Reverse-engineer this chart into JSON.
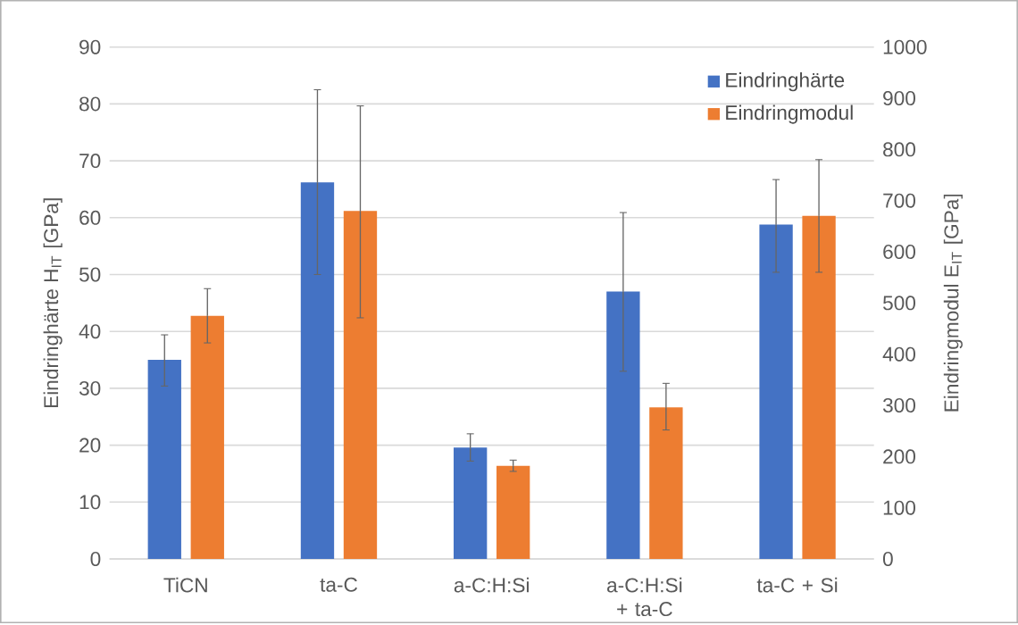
{
  "chart_data": {
    "type": "bar",
    "categories": [
      "TiCN",
      "ta-C",
      "a-C:H:Si",
      "a-C:H:Si + ta-C",
      "ta-C + Si"
    ],
    "series": [
      {
        "name": "Eindringhärte",
        "color": "#4472c4",
        "values": [
          35,
          66.2,
          19.6,
          47,
          58.8
        ],
        "errors": [
          [
            30.4,
            39.4
          ],
          [
            50,
            82.5
          ],
          [
            17.2,
            22
          ],
          [
            33,
            60.9
          ],
          [
            50.4,
            66.7
          ]
        ]
      },
      {
        "name": "Eindringmodul",
        "color": "#ed7d31",
        "axis": "y2",
        "values": [
          475,
          680,
          182,
          296,
          670
        ],
        "errors": [
          [
            422,
            528
          ],
          [
            471,
            885
          ],
          [
            171,
            193
          ],
          [
            252,
            343
          ],
          [
            560,
            780
          ]
        ]
      }
    ],
    "ylabel": "Eindringhärte H$_{IT}$ [GPa]",
    "y2label": "Eindringmodul E$_{IT}$ [GPa]",
    "ylim": [
      0,
      90
    ],
    "yticks": [
      0,
      10,
      20,
      30,
      40,
      50,
      60,
      70,
      80,
      90
    ],
    "y2lim": [
      0,
      1000
    ],
    "y2ticks": [
      0,
      100,
      200,
      300,
      400,
      500,
      600,
      700,
      800,
      900,
      1000
    ],
    "grid": "y",
    "legend": "top right"
  }
}
